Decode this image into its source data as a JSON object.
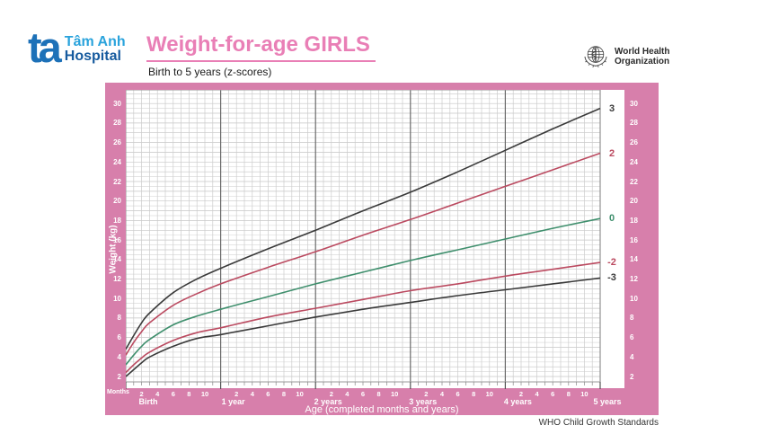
{
  "header": {
    "hospital_logo": {
      "mark": "ta",
      "name": "Tâm Anh",
      "type": "Hospital"
    },
    "title": "Weight-for-age GIRLS",
    "subtitle": "Birth to 5 years (z-scores)",
    "who_logo": {
      "line1": "World Health",
      "line2": "Organization"
    }
  },
  "footer": {
    "credit": "WHO Child Growth Standards"
  },
  "colors": {
    "frame_pink": "#d77fab",
    "title_pink": "#e97fb6",
    "curve_black": "#3a3a3a",
    "curve_red": "#bb4a60",
    "curve_green": "#3f8f6d",
    "logo_blue": "#1d71b8",
    "logo_light_blue": "#2aa3dc",
    "logo_dark_blue": "#155a9e"
  },
  "chart_data": {
    "type": "line",
    "title": "Weight-for-age GIRLS",
    "subtitle": "Birth to 5 years (z-scores)",
    "xlabel": "Age (completed months and years)",
    "ylabel": "Weight (kg)",
    "x_unit_label": "Months",
    "x_year_labels": [
      "Birth",
      "1 year",
      "2 years",
      "3 years",
      "4 years",
      "5 years"
    ],
    "x_minor_tick_labels": [
      2,
      4,
      6,
      8,
      10
    ],
    "xlim_months": [
      0,
      60
    ],
    "ylim_kg": [
      1.45,
      31.4
    ],
    "y_ticks": [
      2,
      4,
      6,
      8,
      10,
      12,
      14,
      16,
      18,
      20,
      22,
      24,
      26,
      28,
      30
    ],
    "grid": true,
    "zscore_labels_position": "right",
    "series": [
      {
        "name": "3",
        "zscore": 3,
        "color": "#3a3a3a",
        "points": [
          [
            0,
            4.8
          ],
          [
            1,
            6.2
          ],
          [
            2,
            7.5
          ],
          [
            3,
            8.5
          ],
          [
            6,
            10.6
          ],
          [
            9,
            12.0
          ],
          [
            12,
            13.1
          ],
          [
            18,
            15.1
          ],
          [
            24,
            17.0
          ],
          [
            30,
            19.0
          ],
          [
            36,
            20.9
          ],
          [
            42,
            23.0
          ],
          [
            48,
            25.2
          ],
          [
            54,
            27.4
          ],
          [
            60,
            29.5
          ]
        ]
      },
      {
        "name": "2",
        "zscore": 2,
        "color": "#bb4a60",
        "points": [
          [
            0,
            4.2
          ],
          [
            1,
            5.5
          ],
          [
            2,
            6.6
          ],
          [
            3,
            7.5
          ],
          [
            6,
            9.3
          ],
          [
            9,
            10.5
          ],
          [
            12,
            11.5
          ],
          [
            18,
            13.2
          ],
          [
            24,
            14.8
          ],
          [
            30,
            16.5
          ],
          [
            36,
            18.1
          ],
          [
            42,
            19.8
          ],
          [
            48,
            21.5
          ],
          [
            54,
            23.2
          ],
          [
            60,
            24.9
          ]
        ]
      },
      {
        "name": "0",
        "zscore": 0,
        "color": "#3f8f6d",
        "points": [
          [
            0,
            3.2
          ],
          [
            1,
            4.2
          ],
          [
            2,
            5.1
          ],
          [
            3,
            5.8
          ],
          [
            6,
            7.3
          ],
          [
            9,
            8.2
          ],
          [
            12,
            8.9
          ],
          [
            18,
            10.2
          ],
          [
            24,
            11.5
          ],
          [
            30,
            12.7
          ],
          [
            36,
            13.9
          ],
          [
            42,
            15.0
          ],
          [
            48,
            16.1
          ],
          [
            54,
            17.2
          ],
          [
            60,
            18.2
          ]
        ]
      },
      {
        "name": "-2",
        "zscore": -2,
        "color": "#bb4a60",
        "points": [
          [
            0,
            2.4
          ],
          [
            1,
            3.2
          ],
          [
            2,
            3.9
          ],
          [
            3,
            4.5
          ],
          [
            6,
            5.7
          ],
          [
            9,
            6.5
          ],
          [
            12,
            7.0
          ],
          [
            18,
            8.1
          ],
          [
            24,
            9.0
          ],
          [
            30,
            9.9
          ],
          [
            36,
            10.8
          ],
          [
            42,
            11.5
          ],
          [
            48,
            12.3
          ],
          [
            54,
            13.0
          ],
          [
            60,
            13.7
          ]
        ]
      },
      {
        "name": "-3",
        "zscore": -3,
        "color": "#3a3a3a",
        "points": [
          [
            0,
            2.0
          ],
          [
            1,
            2.7
          ],
          [
            2,
            3.4
          ],
          [
            3,
            4.0
          ],
          [
            6,
            5.1
          ],
          [
            9,
            5.9
          ],
          [
            12,
            6.3
          ],
          [
            18,
            7.2
          ],
          [
            24,
            8.1
          ],
          [
            30,
            8.9
          ],
          [
            36,
            9.6
          ],
          [
            42,
            10.3
          ],
          [
            48,
            10.9
          ],
          [
            54,
            11.5
          ],
          [
            60,
            12.1
          ]
        ]
      }
    ]
  }
}
